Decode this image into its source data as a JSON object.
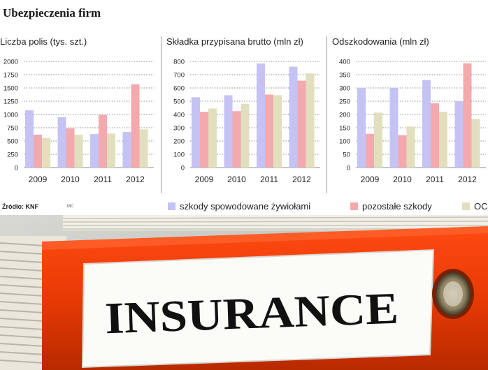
{
  "title": "Ubezpieczenia firm",
  "source": "Źródło: KNF",
  "credit": "MC",
  "colors": {
    "szkody": "#c5c3f3",
    "pozostale": "#f3a9ad",
    "oc": "#e1dfbd",
    "grid": "#8c8c8c"
  },
  "legend": [
    {
      "label": "szkody spowodowane żywiołami",
      "color": "#c5c3f3"
    },
    {
      "label": "pozostałe szkody",
      "color": "#f3a9ad"
    },
    {
      "label": "OC",
      "color": "#e1dfbd"
    }
  ],
  "chart_data": [
    {
      "type": "bar",
      "title": "Liczba polis (tys. szt.)",
      "categories": [
        "2009",
        "2010",
        "2011",
        "2012"
      ],
      "yticks": [
        "0",
        "250",
        "500",
        "750",
        "1000",
        "1250",
        "1500",
        "1750",
        "2000"
      ],
      "ylim": [
        0,
        2000
      ],
      "series": [
        {
          "name": "szkody spowodowane żywiołami",
          "values": [
            1080,
            950,
            630,
            670
          ]
        },
        {
          "name": "pozostałe szkody",
          "values": [
            620,
            740,
            990,
            1570
          ]
        },
        {
          "name": "OC",
          "values": [
            560,
            620,
            640,
            720
          ]
        }
      ]
    },
    {
      "type": "bar",
      "title": "Składka przypisana brutto (mln zł)",
      "categories": [
        "2009",
        "2010",
        "2011",
        "2012"
      ],
      "yticks": [
        "0",
        "100",
        "200",
        "300",
        "400",
        "500",
        "600",
        "700",
        "800"
      ],
      "ylim": [
        0,
        800
      ],
      "series": [
        {
          "name": "szkody spowodowane żywiołami",
          "values": [
            530,
            545,
            785,
            760
          ]
        },
        {
          "name": "pozostałe szkody",
          "values": [
            420,
            425,
            550,
            655
          ]
        },
        {
          "name": "OC",
          "values": [
            445,
            480,
            545,
            710
          ]
        }
      ]
    },
    {
      "type": "bar",
      "title": "Odszkodowania (mln zł)",
      "categories": [
        "2009",
        "2010",
        "2011",
        "2012"
      ],
      "yticks": [
        "0",
        "50",
        "100",
        "150",
        "200",
        "250",
        "300",
        "350",
        "400"
      ],
      "ylim": [
        0,
        400
      ],
      "series": [
        {
          "name": "szkody spowodowane żywiołami",
          "values": [
            300,
            300,
            330,
            250
          ]
        },
        {
          "name": "pozostałe szkody",
          "values": [
            127,
            122,
            242,
            393
          ]
        },
        {
          "name": "OC",
          "values": [
            207,
            155,
            210,
            183
          ]
        }
      ]
    }
  ],
  "photo": {
    "binder_label": "INSURANCE"
  }
}
